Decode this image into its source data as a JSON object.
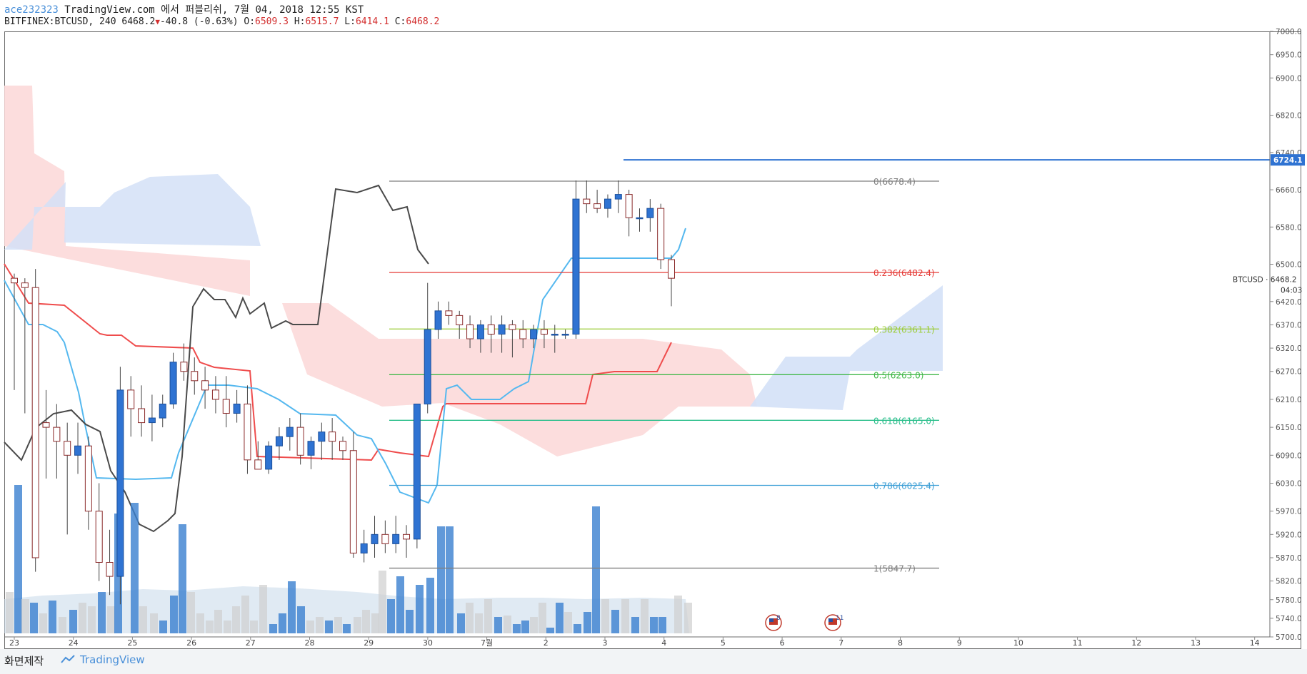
{
  "header": {
    "user": "ace232323",
    "published": "TradingView.com 에서 퍼블리쉬, 7월 04, 2018 12:55 KST",
    "symbol": "BITFINEX:BTCUSD, 240",
    "last": "6468.2",
    "change": "-40.8 (-0.63%)",
    "o_label": "O:",
    "o": "6509.3",
    "h_label": "H:",
    "h": "6515.7",
    "l_label": "L:",
    "l": "6414.1",
    "c_label": "C:",
    "c": "6468.2"
  },
  "price_axis": {
    "ticks": [
      "7000.0",
      "6950.0",
      "6900.0",
      "6820.0",
      "6740.0",
      "6660.0",
      "6580.0",
      "6500.0",
      "6420.0",
      "6370.0",
      "6320.0",
      "6270.0",
      "6210.0",
      "6150.0",
      "6090.0",
      "6030.0",
      "5970.0",
      "5920.0",
      "5870.0",
      "5820.0",
      "5780.0",
      "5740.0",
      "5700.0"
    ],
    "current_price_tag": "6724.1",
    "symbol_tag": "BTCUSD · 6468.2",
    "countdown": "04:03"
  },
  "time_axis": {
    "labels": [
      "23",
      "24",
      "25",
      "26",
      "27",
      "28",
      "29",
      "30",
      "7월",
      "2",
      "3",
      "4",
      "5",
      "6",
      "7",
      "8",
      "9",
      "10",
      "11",
      "12",
      "13",
      "14"
    ]
  },
  "fib_levels": [
    {
      "label": "0(6678.4)",
      "color": "#7f7f7f"
    },
    {
      "label": "0.236(6482.4)",
      "color": "#e53935"
    },
    {
      "label": "0.382(6361.1)",
      "color": "#9ccc3a"
    },
    {
      "label": "0.5(6263.0)",
      "color": "#43b84a"
    },
    {
      "label": "0.618(6165.0)",
      "color": "#2bbf8c"
    },
    {
      "label": "0.786(6025.4)",
      "color": "#3d9fd6"
    },
    {
      "label": "1(5847.7)",
      "color": "#7f7f7f"
    }
  ],
  "events": [
    {
      "label": "8",
      "icon": "us-flag-icon"
    },
    {
      "label": "11",
      "icon": "us-flag-icon"
    }
  ],
  "footer": {
    "made_with": "화면제작",
    "brand": "TradingView"
  },
  "chart_data": {
    "type": "candlestick",
    "series_candles": [
      [
        6470,
        6480,
        6230,
        6460
      ],
      [
        6460,
        6470,
        6180,
        6450
      ],
      [
        6450,
        6490,
        5840,
        5870
      ],
      [
        6160,
        6230,
        6040,
        6150
      ],
      [
        6150,
        6200,
        6040,
        6120
      ],
      [
        6120,
        6160,
        5920,
        6090
      ],
      [
        6090,
        6160,
        6050,
        6110
      ],
      [
        6110,
        6130,
        5930,
        5970
      ],
      [
        5970,
        6030,
        5820,
        5860
      ],
      [
        5860,
        5930,
        5790,
        5830
      ],
      [
        5830,
        6280,
        5770,
        6230
      ],
      [
        6230,
        6260,
        6130,
        6190
      ],
      [
        6190,
        6240,
        6130,
        6160
      ],
      [
        6160,
        6220,
        6120,
        6170
      ],
      [
        6170,
        6220,
        6150,
        6200
      ],
      [
        6200,
        6310,
        6190,
        6290
      ],
      [
        6290,
        6330,
        6250,
        6270
      ],
      [
        6270,
        6300,
        6220,
        6250
      ],
      [
        6250,
        6280,
        6190,
        6230
      ],
      [
        6230,
        6260,
        6180,
        6210
      ],
      [
        6210,
        6260,
        6150,
        6180
      ],
      [
        6180,
        6230,
        6160,
        6200
      ],
      [
        6200,
        6240,
        6050,
        6080
      ],
      [
        6080,
        6120,
        6060,
        6060
      ],
      [
        6060,
        6120,
        6050,
        6110
      ],
      [
        6110,
        6150,
        6080,
        6130
      ],
      [
        6130,
        6170,
        6100,
        6150
      ],
      [
        6150,
        6180,
        6070,
        6090
      ],
      [
        6090,
        6130,
        6060,
        6120
      ],
      [
        6120,
        6160,
        6080,
        6140
      ],
      [
        6140,
        6170,
        6080,
        6120
      ],
      [
        6120,
        6130,
        6080,
        6100
      ],
      [
        6100,
        6140,
        5870,
        5880
      ],
      [
        5880,
        5930,
        5860,
        5900
      ],
      [
        5900,
        5960,
        5870,
        5920
      ],
      [
        5920,
        5950,
        5880,
        5900
      ],
      [
        5900,
        5960,
        5880,
        5920
      ],
      [
        5920,
        5940,
        5870,
        5910
      ],
      [
        5910,
        6160,
        5890,
        6200
      ],
      [
        6200,
        6460,
        6180,
        6360
      ],
      [
        6360,
        6420,
        6340,
        6400
      ],
      [
        6400,
        6420,
        6370,
        6390
      ],
      [
        6390,
        6400,
        6340,
        6370
      ],
      [
        6370,
        6390,
        6320,
        6340
      ],
      [
        6340,
        6380,
        6310,
        6370
      ],
      [
        6370,
        6390,
        6310,
        6350
      ],
      [
        6350,
        6390,
        6310,
        6370
      ],
      [
        6370,
        6380,
        6300,
        6360
      ],
      [
        6360,
        6380,
        6320,
        6340
      ],
      [
        6340,
        6370,
        6320,
        6360
      ],
      [
        6360,
        6380,
        6320,
        6350
      ],
      [
        6350,
        6370,
        6310,
        6350
      ],
      [
        6350,
        6360,
        6340,
        6350
      ],
      [
        6350,
        6680,
        6340,
        6640
      ],
      [
        6640,
        6680,
        6610,
        6630
      ],
      [
        6630,
        6660,
        6610,
        6620
      ],
      [
        6620,
        6650,
        6600,
        6640
      ],
      [
        6640,
        6680,
        6610,
        6650
      ],
      [
        6650,
        6660,
        6560,
        6600
      ],
      [
        6600,
        6620,
        6570,
        6600
      ],
      [
        6600,
        6640,
        6570,
        6620
      ],
      [
        6620,
        6630,
        6490,
        6510
      ],
      [
        6510,
        6520,
        6410,
        6470
      ]
    ],
    "ylim": [
      5700,
      7000
    ],
    "ichimoku": true,
    "volume": true,
    "last_price": 6468.2
  }
}
